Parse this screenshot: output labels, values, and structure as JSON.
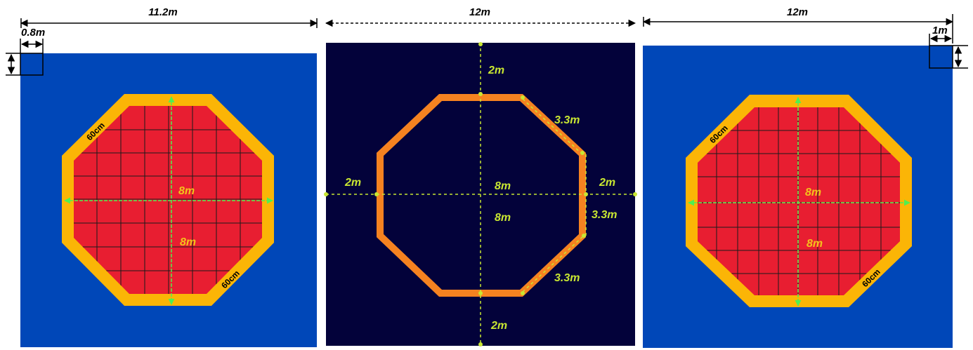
{
  "colors": {
    "panel_blue": "#0047b8",
    "panel_navy": "#03023a",
    "octagon_red": "#e81e31",
    "border_yellow": "#fbb506",
    "outline_orange": "#f58220",
    "guide_green": "#c8e632",
    "arrow_green": "#50f050"
  },
  "top_dimensions": {
    "left_width": "11.2m",
    "middle_width": "12m",
    "right_width": "12m",
    "left_cell": "0.8m",
    "right_cell": "1m"
  },
  "left_panel": {
    "border_top": "60cm",
    "border_bottom": "60cm",
    "horizontal": "8m",
    "vertical": "8m"
  },
  "middle_panel": {
    "top_gap": "2m",
    "bottom_gap": "2m",
    "left_gap": "2m",
    "right_gap": "2m",
    "horizontal": "8m",
    "vertical": "8m",
    "diagonal_top": "3.3m",
    "right_side": "3.3m",
    "diagonal_bottom": "3.3m"
  },
  "right_panel": {
    "border_top": "60cm",
    "border_bottom": "60cm",
    "horizontal": "8m",
    "vertical": "8m"
  }
}
